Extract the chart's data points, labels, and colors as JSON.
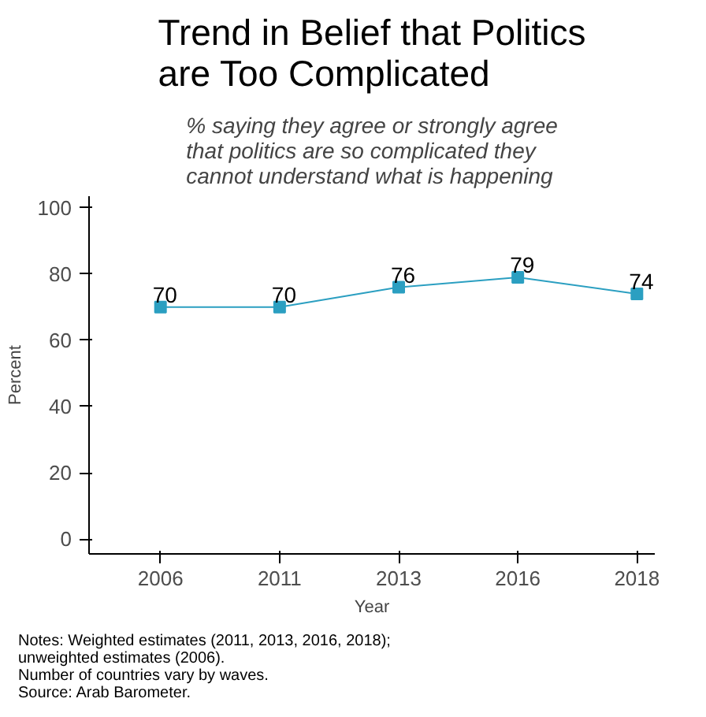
{
  "chart_data": {
    "type": "line",
    "title": "Trend in Belief that Politics are Too Complicated",
    "subtitle": "% saying they agree or strongly agree that politics are so complicated they cannot understand what is happening",
    "xlabel": "Year",
    "ylabel": "Percent",
    "categories": [
      "2006",
      "2011",
      "2013",
      "2016",
      "2018"
    ],
    "series": [
      {
        "color": "#2b9fc1",
        "values": [
          70,
          70,
          76,
          79,
          74
        ]
      }
    ],
    "ylim": [
      -4.5,
      103.5
    ],
    "yticks": [
      0,
      20,
      40,
      60,
      80,
      100
    ],
    "data_labels": true,
    "marker": "square",
    "annotations": [
      "Notes: Weighted estimates (2011, 2013, 2016, 2018);",
      "unweighted estimates (2006).",
      "Number of countries vary by waves.",
      "Source: Arab Barometer."
    ]
  }
}
